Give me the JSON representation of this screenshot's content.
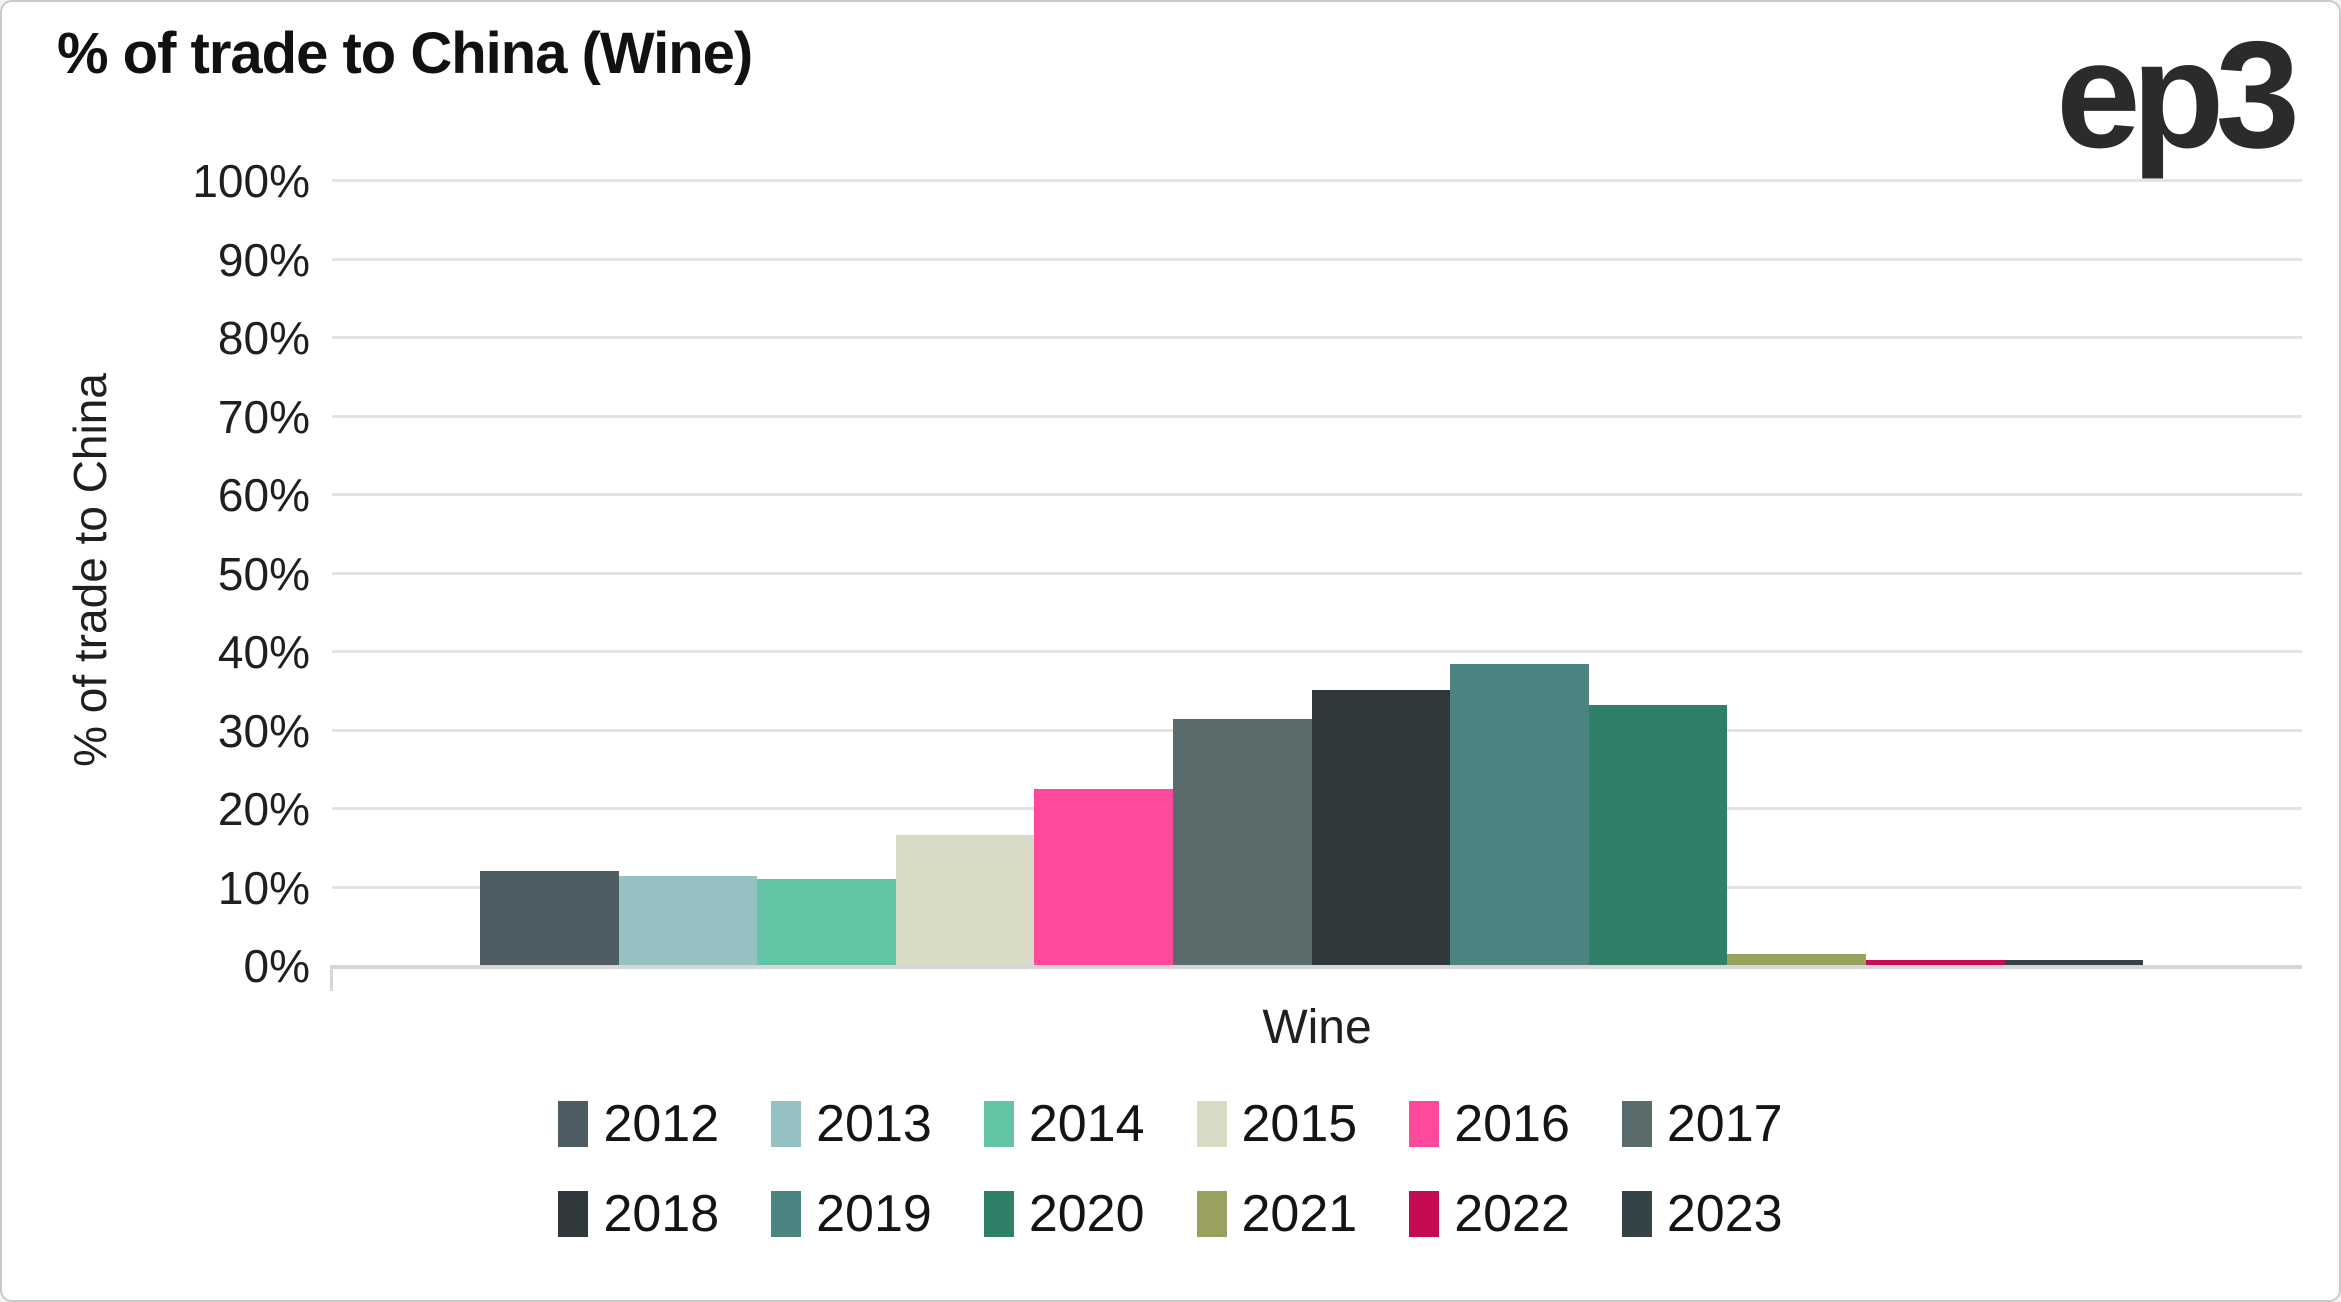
{
  "header": {
    "title": "% of trade to China (Wine)",
    "logo_text": "ep3"
  },
  "chart_data": {
    "type": "bar",
    "title": "% of trade to China (Wine)",
    "xlabel": "Wine",
    "ylabel": "% of trade to China",
    "ylim": [
      0,
      100
    ],
    "yticks": [
      "0%",
      "10%",
      "20%",
      "30%",
      "40%",
      "50%",
      "60%",
      "70%",
      "80%",
      "90%",
      "100%"
    ],
    "grid": true,
    "legend_position": "bottom",
    "value_suffix": "%",
    "group_label": "Wine",
    "series": [
      {
        "name": "2012",
        "value": 12.0,
        "color": "#4d5d63"
      },
      {
        "name": "2013",
        "value": 11.4,
        "color": "#95c1c2"
      },
      {
        "name": "2014",
        "value": 11.0,
        "color": "#63c4a6"
      },
      {
        "name": "2015",
        "value": 16.6,
        "color": "#d9dbc6"
      },
      {
        "name": "2016",
        "value": 22.4,
        "color": "#ff4a9b"
      },
      {
        "name": "2017",
        "value": 31.3,
        "color": "#5a6b6c"
      },
      {
        "name": "2018",
        "value": 35.0,
        "color": "#2f393c"
      },
      {
        "name": "2019",
        "value": 38.3,
        "color": "#4b8480"
      },
      {
        "name": "2020",
        "value": 33.1,
        "color": "#2e8068"
      },
      {
        "name": "2021",
        "value": 1.4,
        "color": "#9aa15e"
      },
      {
        "name": "2022",
        "value": 0.6,
        "color": "#c50b54"
      },
      {
        "name": "2023",
        "value": 0.6,
        "color": "#344345"
      }
    ],
    "legend_rows": [
      [
        "2012",
        "2013",
        "2014",
        "2015",
        "2016",
        "2017"
      ],
      [
        "2018",
        "2019",
        "2020",
        "2021",
        "2022",
        "2023"
      ]
    ]
  },
  "colors": {
    "grid": "#e3e3e3",
    "axis": "#d6d6d6",
    "text": "#1f1f1f",
    "border": "#c9c9c9",
    "logo": "#2b2b2b"
  }
}
